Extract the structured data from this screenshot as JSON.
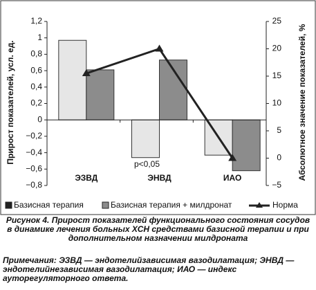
{
  "chart_data": {
    "type": "bar",
    "categories": [
      "ЭЗВД",
      "ЭНВД",
      "ИАО"
    ],
    "series": [
      {
        "name": "Базисная терапия",
        "color": "#e6e6e6",
        "values": [
          0.97,
          -0.46,
          -0.43
        ]
      },
      {
        "name": "Базисная терапия + милдронат",
        "color": "#8c8c8c",
        "values": [
          0.61,
          0.73,
          -0.62
        ]
      },
      {
        "name": "Норма",
        "type": "line",
        "axis": "y2",
        "color": "#222222",
        "values": [
          15.5,
          20,
          0
        ]
      }
    ],
    "ylabel": "Прирост показателей, усл. ед.",
    "y2label": "Абсолютное значение показателей, %",
    "ylim": [
      -0.8,
      1.2
    ],
    "yticks": [
      {
        "value": -0.8,
        "label": "−0,8"
      },
      {
        "value": -0.6,
        "label": "−0,6"
      },
      {
        "value": -0.4,
        "label": "−0,4"
      },
      {
        "value": -0.2,
        "label": "−0,2"
      },
      0,
      {
        "value": 0.2,
        "label": "0,2"
      },
      {
        "value": 0.4,
        "label": "0,4"
      },
      {
        "value": 0.6,
        "label": "0,6"
      },
      {
        "value": 0.8,
        "label": "0,8"
      },
      1,
      {
        "value": 1.2,
        "label": "1,2"
      }
    ],
    "y2lim": [
      -5,
      25
    ],
    "y2ticks": [
      {
        "value": -5,
        "label": "−5"
      },
      0,
      5,
      10,
      15,
      20,
      25
    ],
    "annotation": "p<0,05",
    "caption": "Рисунок 4. Прирост показателей функционального состояния сосудов в динамике лечения больных ХСН средствами базисной терапии и при дополнительном назначении милдроната",
    "note": "Примечания: ЭЗВД — эндотелийзависимая вазодилатация; ЭНВД — эндотелийнезависимая вазодилатация; ИАО — индекс ауторегуляторного ответа."
  }
}
